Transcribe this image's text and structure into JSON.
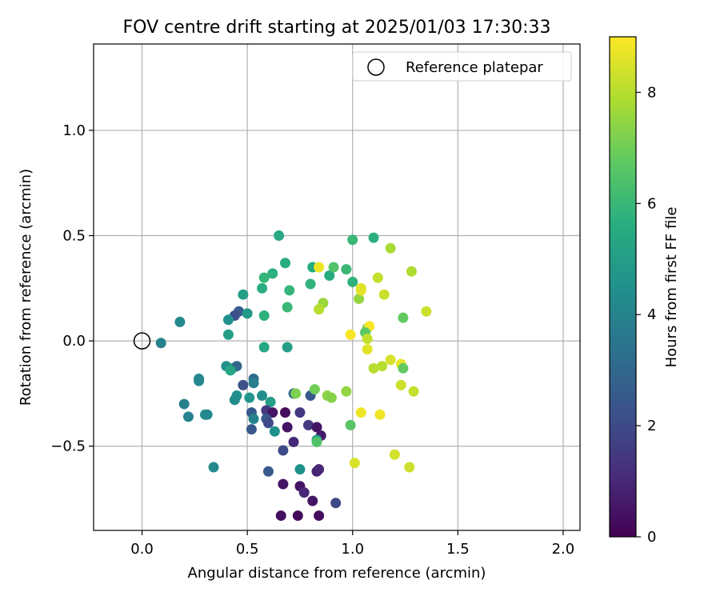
{
  "chart_data": {
    "type": "scatter",
    "title": "FOV centre drift starting at 2025/01/03 17:30:33",
    "xlabel": "Angular distance from reference (arcmin)",
    "ylabel": "Rotation from reference (arcmin)",
    "xlim": [
      -0.23,
      2.08
    ],
    "ylim": [
      -0.9,
      1.41
    ],
    "x_ticks": [
      0.0,
      0.5,
      1.0,
      1.5,
      2.0
    ],
    "x_tick_labels": [
      "0.0",
      "0.5",
      "1.0",
      "1.5",
      "2.0"
    ],
    "y_ticks": [
      -0.5,
      0.0,
      0.5,
      1.0
    ],
    "y_tick_labels": [
      "−0.5",
      "0.0",
      "0.5",
      "1.0"
    ],
    "grid": true,
    "legend": {
      "position": "top-right",
      "entries": [
        {
          "label": "Reference platepar",
          "marker": "open-circle"
        }
      ]
    },
    "reference_point": {
      "x": 0.0,
      "y": 0.0
    },
    "colorbar": {
      "label": "Hours from first FF file",
      "colormap": "viridis",
      "range": [
        0,
        9
      ],
      "ticks": [
        0,
        2,
        4,
        6,
        8
      ],
      "tick_labels": [
        "0",
        "2",
        "4",
        "6",
        "8"
      ]
    },
    "points": [
      {
        "x": 0.65,
        "y": 0.5,
        "c": 5.4
      },
      {
        "x": 0.68,
        "y": 0.37,
        "c": 5.6
      },
      {
        "x": 0.62,
        "y": 0.32,
        "c": 5.7
      },
      {
        "x": 0.58,
        "y": 0.3,
        "c": 5.9
      },
      {
        "x": 0.57,
        "y": 0.25,
        "c": 5.6
      },
      {
        "x": 0.48,
        "y": 0.22,
        "c": 5.0
      },
      {
        "x": 0.46,
        "y": 0.14,
        "c": 2.5
      },
      {
        "x": 0.44,
        "y": 0.12,
        "c": 2.2
      },
      {
        "x": 0.5,
        "y": 0.13,
        "c": 4.8
      },
      {
        "x": 0.41,
        "y": 0.1,
        "c": 4.5
      },
      {
        "x": 0.58,
        "y": 0.12,
        "c": 5.7
      },
      {
        "x": 0.69,
        "y": 0.16,
        "c": 6.0
      },
      {
        "x": 0.7,
        "y": 0.24,
        "c": 5.9
      },
      {
        "x": 0.8,
        "y": 0.27,
        "c": 5.8
      },
      {
        "x": 0.81,
        "y": 0.35,
        "c": 5.5
      },
      {
        "x": 0.89,
        "y": 0.31,
        "c": 5.5
      },
      {
        "x": 0.91,
        "y": 0.35,
        "c": 6.5
      },
      {
        "x": 0.97,
        "y": 0.34,
        "c": 6.0
      },
      {
        "x": 1.0,
        "y": 0.48,
        "c": 6.0
      },
      {
        "x": 1.1,
        "y": 0.49,
        "c": 5.7
      },
      {
        "x": 1.0,
        "y": 0.28,
        "c": 5.8
      },
      {
        "x": 0.84,
        "y": 0.35,
        "c": 8.8
      },
      {
        "x": 0.86,
        "y": 0.18,
        "c": 7.6
      },
      {
        "x": 0.84,
        "y": 0.15,
        "c": 8.0
      },
      {
        "x": 1.03,
        "y": 0.2,
        "c": 7.5
      },
      {
        "x": 1.04,
        "y": 0.24,
        "c": 8.8
      },
      {
        "x": 1.04,
        "y": 0.25,
        "c": 8.6
      },
      {
        "x": 1.12,
        "y": 0.3,
        "c": 8.2
      },
      {
        "x": 1.15,
        "y": 0.22,
        "c": 8.3
      },
      {
        "x": 1.18,
        "y": 0.44,
        "c": 7.8
      },
      {
        "x": 1.28,
        "y": 0.33,
        "c": 7.9
      },
      {
        "x": 1.35,
        "y": 0.14,
        "c": 8.3
      },
      {
        "x": 1.24,
        "y": 0.11,
        "c": 6.8
      },
      {
        "x": 1.07,
        "y": 0.06,
        "c": 7.0
      },
      {
        "x": 1.08,
        "y": 0.07,
        "c": 8.9
      },
      {
        "x": 1.06,
        "y": 0.04,
        "c": 6.7
      },
      {
        "x": 0.99,
        "y": 0.03,
        "c": 8.9
      },
      {
        "x": 1.07,
        "y": 0.01,
        "c": 8.2
      },
      {
        "x": 1.07,
        "y": -0.04,
        "c": 8.6
      },
      {
        "x": 1.18,
        "y": -0.09,
        "c": 8.5
      },
      {
        "x": 1.23,
        "y": -0.11,
        "c": 8.7
      },
      {
        "x": 1.24,
        "y": -0.13,
        "c": 6.8
      },
      {
        "x": 1.14,
        "y": -0.12,
        "c": 8.0
      },
      {
        "x": 1.1,
        "y": -0.13,
        "c": 8.0
      },
      {
        "x": 1.23,
        "y": -0.21,
        "c": 8.3
      },
      {
        "x": 1.29,
        "y": -0.24,
        "c": 8.2
      },
      {
        "x": 0.18,
        "y": 0.09,
        "c": 4.2
      },
      {
        "x": 0.09,
        "y": -0.01,
        "c": 4.0
      },
      {
        "x": 0.41,
        "y": 0.03,
        "c": 5.0
      },
      {
        "x": 0.58,
        "y": -0.03,
        "c": 5.3
      },
      {
        "x": 0.69,
        "y": -0.03,
        "c": 5.0
      },
      {
        "x": 0.4,
        "y": -0.12,
        "c": 4.5
      },
      {
        "x": 0.43,
        "y": -0.13,
        "c": 5.0
      },
      {
        "x": 0.45,
        "y": -0.12,
        "c": 3.0
      },
      {
        "x": 0.42,
        "y": -0.14,
        "c": 5.3
      },
      {
        "x": 0.27,
        "y": -0.18,
        "c": 4.2
      },
      {
        "x": 0.27,
        "y": -0.19,
        "c": 4.1
      },
      {
        "x": 0.48,
        "y": -0.21,
        "c": 2.2
      },
      {
        "x": 0.53,
        "y": -0.18,
        "c": 3.2
      },
      {
        "x": 0.53,
        "y": -0.2,
        "c": 3.8
      },
      {
        "x": 0.45,
        "y": -0.26,
        "c": 4.5
      },
      {
        "x": 0.44,
        "y": -0.28,
        "c": 4.3
      },
      {
        "x": 0.51,
        "y": -0.27,
        "c": 4.7
      },
      {
        "x": 0.57,
        "y": -0.26,
        "c": 4.4
      },
      {
        "x": 0.61,
        "y": -0.29,
        "c": 5.0
      },
      {
        "x": 0.72,
        "y": -0.25,
        "c": 3.0
      },
      {
        "x": 0.73,
        "y": -0.25,
        "c": 7.2
      },
      {
        "x": 0.8,
        "y": -0.26,
        "c": 2.5
      },
      {
        "x": 0.82,
        "y": -0.23,
        "c": 7.0
      },
      {
        "x": 0.88,
        "y": -0.26,
        "c": 7.4
      },
      {
        "x": 0.9,
        "y": -0.27,
        "c": 7.3
      },
      {
        "x": 0.97,
        "y": -0.24,
        "c": 7.5
      },
      {
        "x": 1.04,
        "y": -0.34,
        "c": 8.8
      },
      {
        "x": 1.13,
        "y": -0.35,
        "c": 8.8
      },
      {
        "x": 0.2,
        "y": -0.3,
        "c": 3.9
      },
      {
        "x": 0.22,
        "y": -0.36,
        "c": 4.0
      },
      {
        "x": 0.3,
        "y": -0.35,
        "c": 4.3
      },
      {
        "x": 0.31,
        "y": -0.35,
        "c": 4.2
      },
      {
        "x": 0.52,
        "y": -0.34,
        "c": 2.5
      },
      {
        "x": 0.53,
        "y": -0.37,
        "c": 4.0
      },
      {
        "x": 0.59,
        "y": -0.33,
        "c": 1.5
      },
      {
        "x": 0.62,
        "y": -0.34,
        "c": 0.5
      },
      {
        "x": 0.68,
        "y": -0.34,
        "c": 0.3
      },
      {
        "x": 0.75,
        "y": -0.34,
        "c": 1.5
      },
      {
        "x": 0.59,
        "y": -0.37,
        "c": 2.5
      },
      {
        "x": 0.6,
        "y": -0.39,
        "c": 2.0
      },
      {
        "x": 0.69,
        "y": -0.41,
        "c": 0.5
      },
      {
        "x": 0.79,
        "y": -0.4,
        "c": 1.5
      },
      {
        "x": 0.83,
        "y": -0.41,
        "c": 0.5
      },
      {
        "x": 0.85,
        "y": -0.45,
        "c": 0.6
      },
      {
        "x": 0.52,
        "y": -0.42,
        "c": 2.5
      },
      {
        "x": 0.63,
        "y": -0.43,
        "c": 4.5
      },
      {
        "x": 0.72,
        "y": -0.48,
        "c": 1.0
      },
      {
        "x": 0.83,
        "y": -0.47,
        "c": 4.8
      },
      {
        "x": 0.83,
        "y": -0.48,
        "c": 6.5
      },
      {
        "x": 0.99,
        "y": -0.4,
        "c": 6.6
      },
      {
        "x": 0.67,
        "y": -0.52,
        "c": 2.0
      },
      {
        "x": 0.34,
        "y": -0.6,
        "c": 4.2
      },
      {
        "x": 0.6,
        "y": -0.62,
        "c": 2.5
      },
      {
        "x": 0.75,
        "y": -0.61,
        "c": 4.5
      },
      {
        "x": 0.83,
        "y": -0.62,
        "c": 0.8
      },
      {
        "x": 0.84,
        "y": -0.61,
        "c": 1.0
      },
      {
        "x": 1.01,
        "y": -0.58,
        "c": 8.5
      },
      {
        "x": 1.2,
        "y": -0.54,
        "c": 8.4
      },
      {
        "x": 1.27,
        "y": -0.6,
        "c": 8.3
      },
      {
        "x": 0.67,
        "y": -0.68,
        "c": 0.5
      },
      {
        "x": 0.75,
        "y": -0.69,
        "c": 0.5
      },
      {
        "x": 0.77,
        "y": -0.72,
        "c": 1.0
      },
      {
        "x": 0.81,
        "y": -0.76,
        "c": 0.5
      },
      {
        "x": 0.92,
        "y": -0.77,
        "c": 2.0
      },
      {
        "x": 0.66,
        "y": -0.83,
        "c": 0.3
      },
      {
        "x": 0.74,
        "y": -0.83,
        "c": 0.2
      },
      {
        "x": 0.84,
        "y": -0.83,
        "c": 0.3
      }
    ]
  }
}
